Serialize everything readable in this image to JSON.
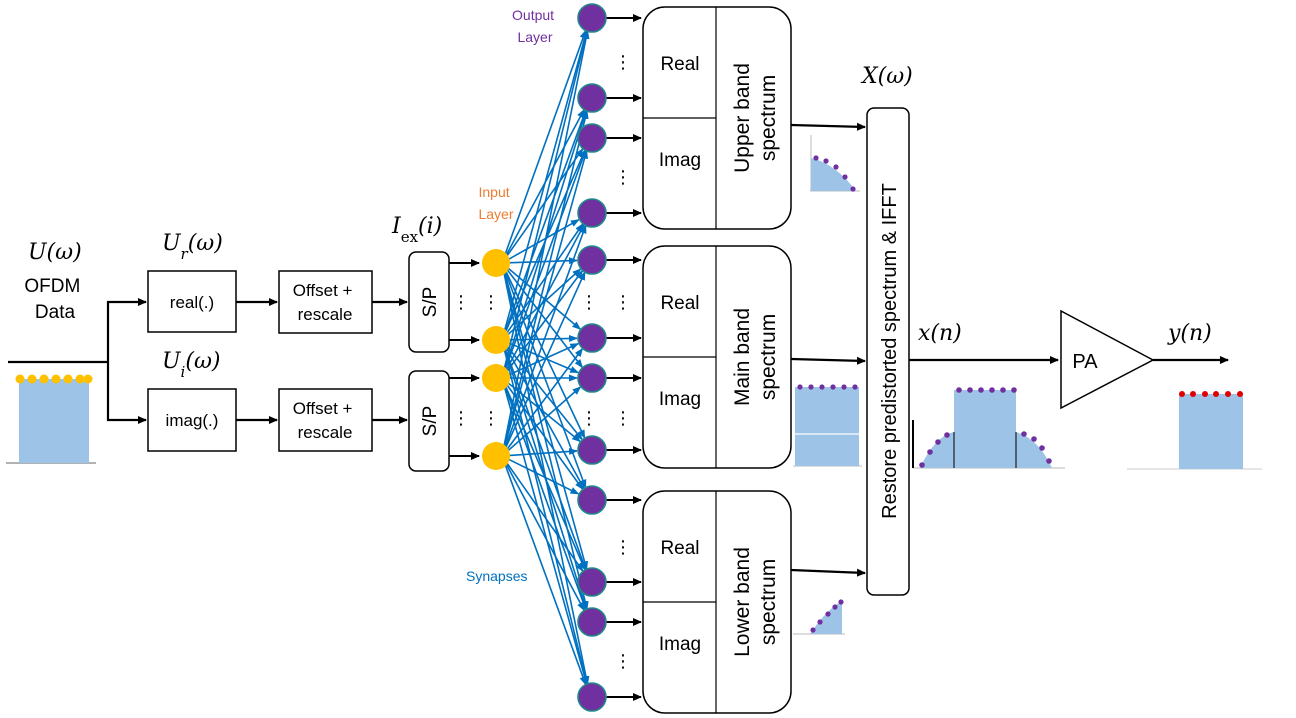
{
  "colors": {
    "synapse": "#0070c0",
    "output_neuron": "#7030a0",
    "input_neuron": "#ffc000",
    "spectrum_fill": "#9dc3e6",
    "input_label": "#ed7d31",
    "output_label": "#7030a0",
    "pa_output_dots": "#e00000"
  },
  "labels": {
    "u_omega": "U(ω)",
    "ofdm_data": "OFDM\nData",
    "ur_omega": "U_r(ω)",
    "ui_omega": "U_i(ω)",
    "iex": "I_ex(i)",
    "x_omega": "X(ω)",
    "x_n": "x(n)",
    "y_n": "y(n)",
    "input_layer": "Input\nLayer",
    "output_layer": "Output\nLayer",
    "synapses": "Synapses"
  },
  "blocks": {
    "real_fn": "real(.)",
    "imag_fn": "imag(.)",
    "offset_rescale": "Offset +\nrescale",
    "sp": "S/P",
    "restore": "Restore predistorted spectrum & IFFT",
    "pa": "PA"
  },
  "bands": [
    {
      "id": "upper",
      "real": "Real",
      "imag": "Imag",
      "title": "Upper band\nspectrum"
    },
    {
      "id": "main",
      "real": "Real",
      "imag": "Imag",
      "title": "Main band\nspectrum"
    },
    {
      "id": "lower",
      "real": "Real",
      "imag": "Imag",
      "title": "Lower band\nspectrum"
    }
  ],
  "ellipsis": "⋮"
}
